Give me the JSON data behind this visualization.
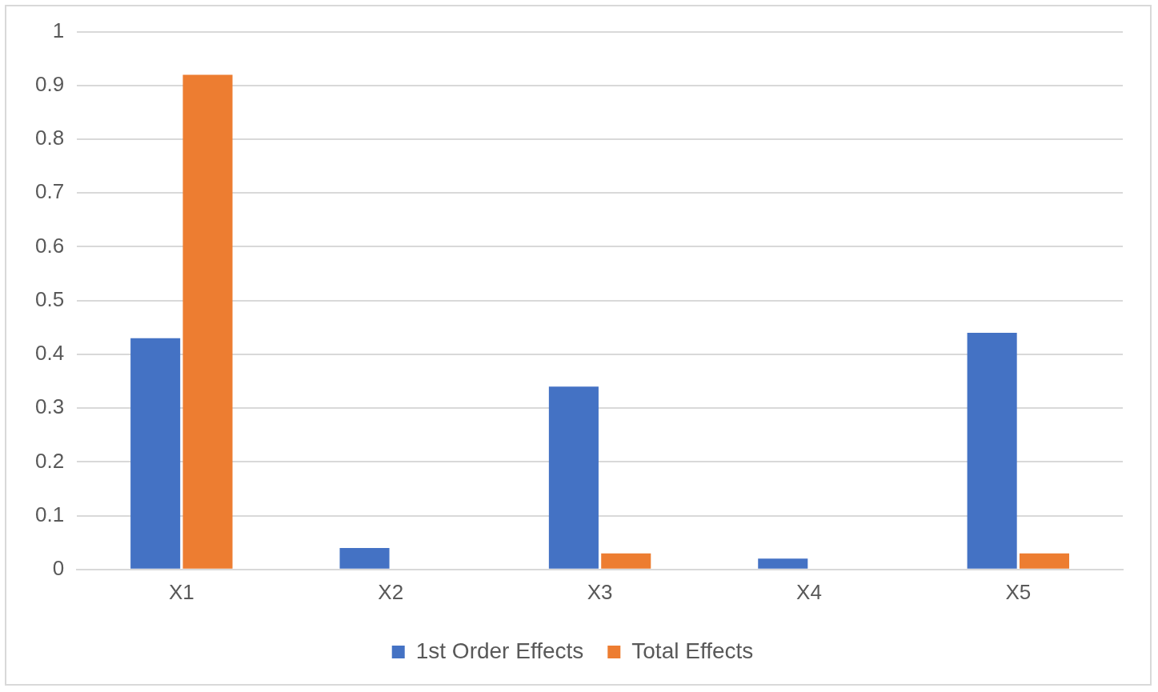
{
  "chart_data": {
    "type": "bar",
    "categories": [
      "X1",
      "X2",
      "X3",
      "X4",
      "X5"
    ],
    "series": [
      {
        "name": "1st Order Effects",
        "color": "#4472c4",
        "values": [
          0.43,
          0.04,
          0.34,
          0.02,
          0.44
        ]
      },
      {
        "name": "Total Effects",
        "color": "#ed7d31",
        "values": [
          0.92,
          0,
          0.03,
          0,
          0.03
        ]
      }
    ],
    "ylim": [
      0,
      1
    ],
    "yticks": [
      0,
      0.1,
      0.2,
      0.3,
      0.4,
      0.5,
      0.6,
      0.7,
      0.8,
      0.9,
      1
    ],
    "grid": "y",
    "legend": "bottom"
  }
}
